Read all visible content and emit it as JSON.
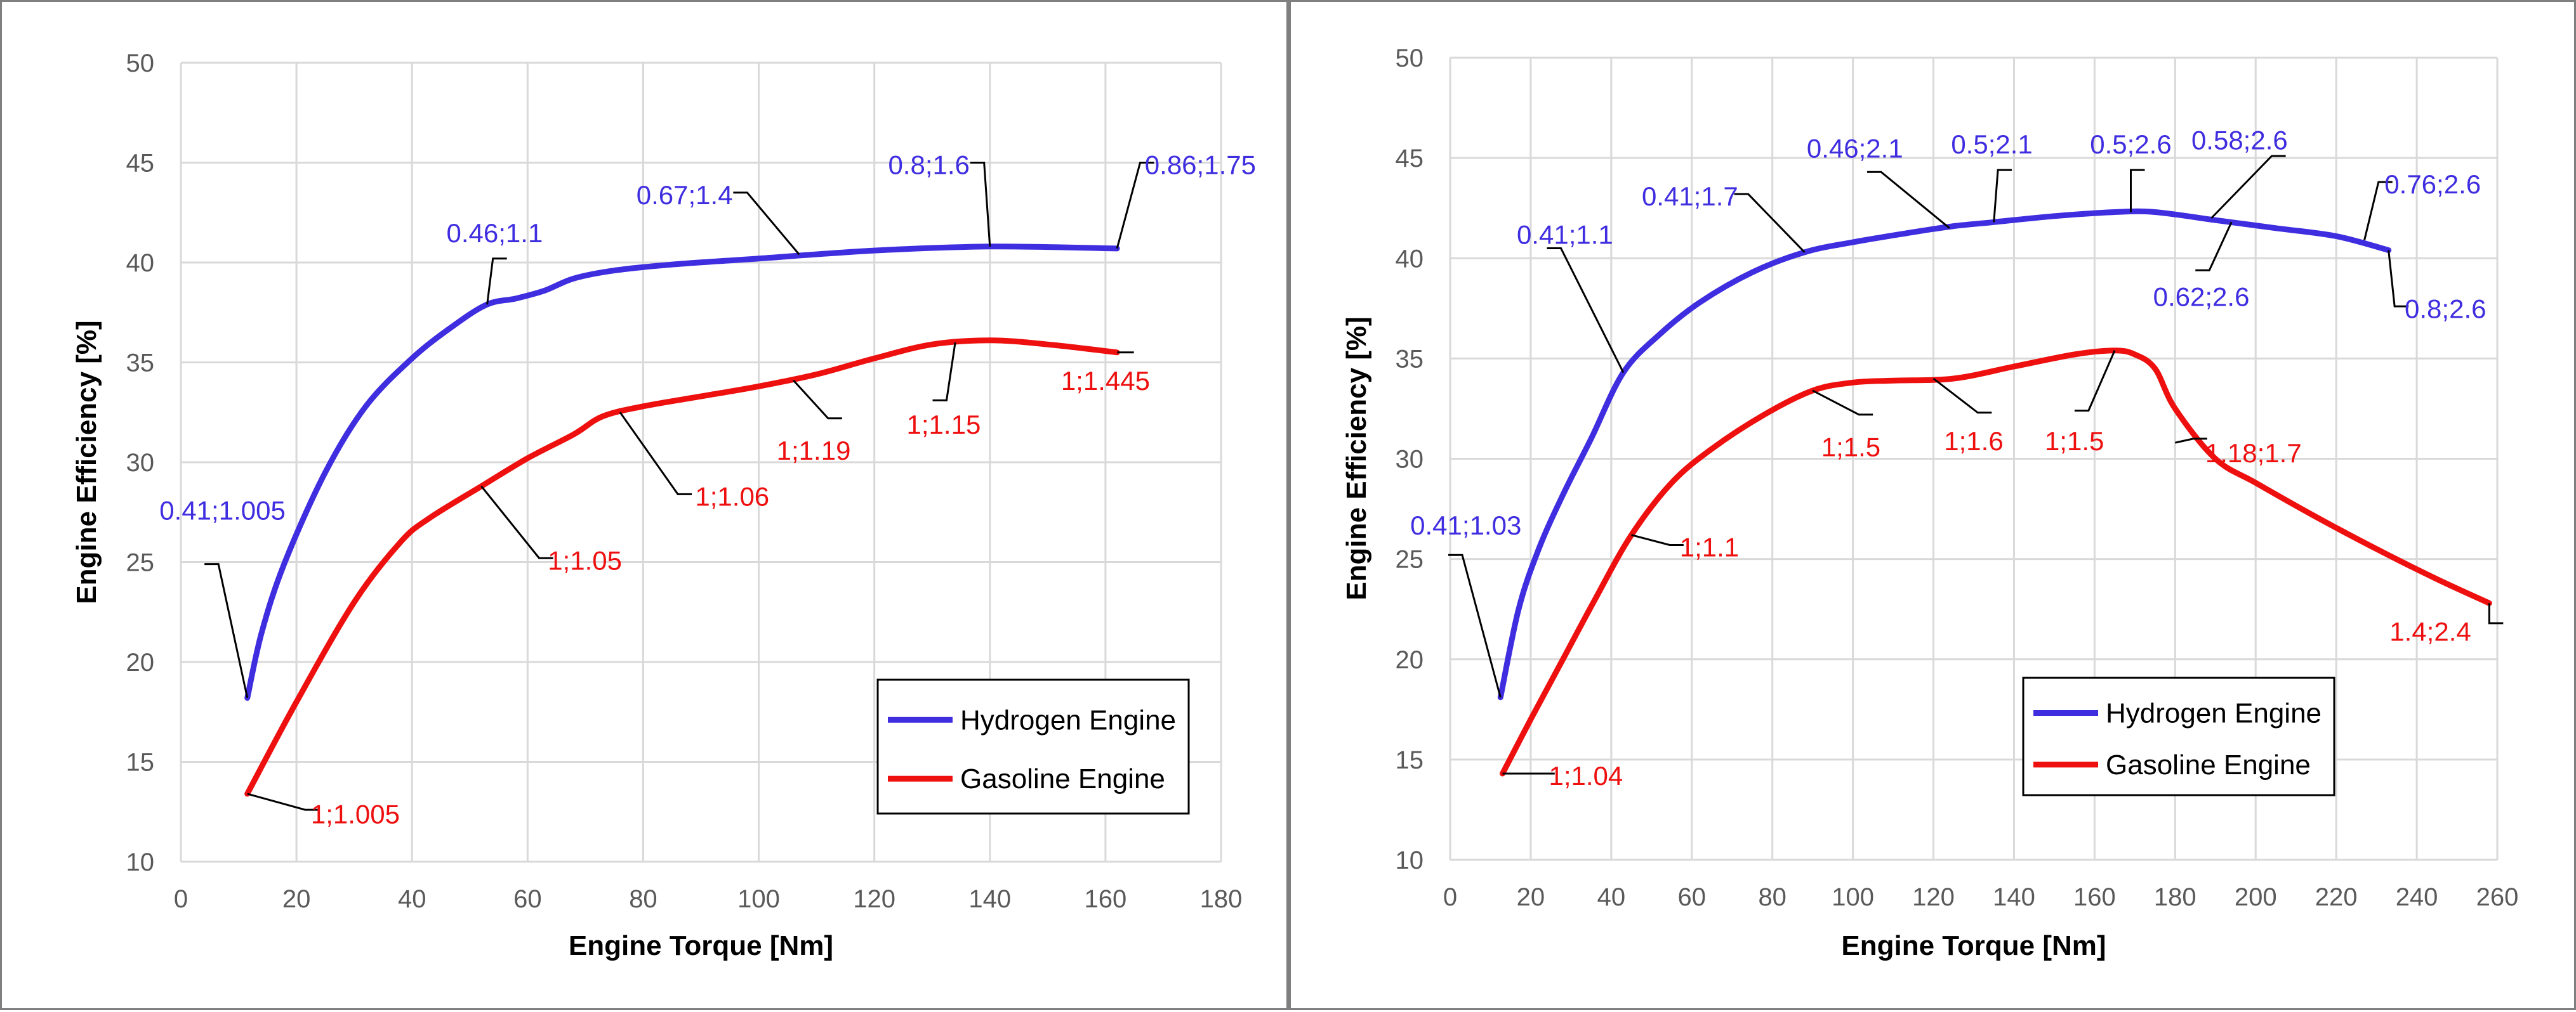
{
  "chart_data": [
    {
      "type": "line",
      "title": "",
      "xlabel": "Engine Torque [Nm]",
      "ylabel": "Engine Efficiency [%]",
      "xlim": [
        0,
        180
      ],
      "ylim": [
        10,
        50
      ],
      "xticks": [
        0,
        20,
        40,
        60,
        80,
        100,
        120,
        140,
        160,
        180
      ],
      "yticks": [
        10,
        15,
        20,
        25,
        30,
        35,
        40,
        45,
        50
      ],
      "grid": true,
      "legend_position": "bottom-right",
      "series": [
        {
          "name": "Hydrogen Engine",
          "color": "#3f2de0",
          "x": [
            11.5,
            14,
            18,
            25,
            32,
            40,
            47,
            53,
            58,
            63,
            68,
            75,
            85,
            100,
            120,
            140,
            162
          ],
          "y": [
            18.2,
            21.5,
            25,
            29.5,
            32.8,
            35.2,
            36.8,
            37.9,
            38.2,
            38.6,
            39.2,
            39.6,
            39.9,
            40.2,
            40.6,
            40.8,
            40.7
          ]
        },
        {
          "name": "Gasoline Engine",
          "color": "#ee0f0f",
          "x": [
            11.5,
            20,
            30,
            38,
            43,
            52,
            60,
            68,
            73,
            80,
            90,
            100,
            110,
            120,
            130,
            140,
            150,
            162
          ],
          "y": [
            13.4,
            18,
            23,
            26,
            27.2,
            28.8,
            30.2,
            31.4,
            32.3,
            32.8,
            33.3,
            33.8,
            34.4,
            35.2,
            35.9,
            36.1,
            35.9,
            35.5
          ]
        }
      ],
      "annotations": [
        {
          "series": 0,
          "text": "0.41;1.005",
          "x": 11.5,
          "y": 18.2,
          "lx": 6.5,
          "ly": 24.9,
          "tx": 7.2,
          "ty": 27.6,
          "anchor": "middle"
        },
        {
          "series": 0,
          "text": "0.46;1.1",
          "x": 53,
          "y": 37.9,
          "lx": 54,
          "ly": 40.2,
          "tx": 54.3,
          "ty": 41.5,
          "anchor": "middle"
        },
        {
          "series": 0,
          "text": "0.67;1.4",
          "x": 107,
          "y": 40.4,
          "lx": 98,
          "ly": 43.5,
          "tx": 95.5,
          "ty": 43.4,
          "anchor": "end"
        },
        {
          "series": 0,
          "text": "0.8;1.6",
          "x": 140,
          "y": 40.8,
          "lx": 139,
          "ly": 45,
          "tx": 136.5,
          "ty": 44.9,
          "anchor": "end"
        },
        {
          "series": 0,
          "text": "0.86;1.75",
          "x": 162,
          "y": 40.7,
          "lx": 166,
          "ly": 45,
          "tx": 166.8,
          "ty": 44.9,
          "anchor": "start"
        },
        {
          "series": 1,
          "text": "1;1.005",
          "x": 11.5,
          "y": 13.4,
          "lx": 21.5,
          "ly": 12.6,
          "tx": 22.5,
          "ty": 12.4,
          "anchor": "start"
        },
        {
          "series": 1,
          "text": "1;1.05",
          "x": 52,
          "y": 28.8,
          "lx": 62,
          "ly": 25.2,
          "tx": 63.5,
          "ty": 25.1,
          "anchor": "start"
        },
        {
          "series": 1,
          "text": "1;1.06",
          "x": 76,
          "y": 32.5,
          "lx": 86,
          "ly": 28.4,
          "tx": 89,
          "ty": 28.3,
          "anchor": "start"
        },
        {
          "series": 1,
          "text": "1;1.19",
          "x": 106,
          "y": 34.1,
          "lx": 112,
          "ly": 32.2,
          "tx": 109.5,
          "ty": 30.6,
          "anchor": "middle"
        },
        {
          "series": 1,
          "text": "1;1.15",
          "x": 134,
          "y": 36.0,
          "lx": 132.5,
          "ly": 33.1,
          "tx": 132,
          "ty": 31.9,
          "anchor": "middle"
        },
        {
          "series": 1,
          "text": "1;1.445",
          "x": 162,
          "y": 35.5,
          "lx": 162.5,
          "ly": 35.5,
          "tx": 160,
          "ty": 34.1,
          "anchor": "middle"
        }
      ]
    },
    {
      "type": "line",
      "title": "",
      "xlabel": "Engine Torque [Nm]",
      "ylabel": "Engine Efficiency [%]",
      "xlim": [
        0,
        260
      ],
      "ylim": [
        10,
        50
      ],
      "xticks": [
        0,
        20,
        40,
        60,
        80,
        100,
        120,
        140,
        160,
        180,
        200,
        220,
        240,
        260
      ],
      "yticks": [
        10,
        15,
        20,
        25,
        30,
        35,
        40,
        45,
        50
      ],
      "grid": true,
      "legend_position": "bottom-right",
      "series": [
        {
          "name": "Hydrogen Engine",
          "color": "#3f2de0",
          "x": [
            12.5,
            17,
            22,
            28,
            35,
            43,
            52,
            62,
            75,
            88,
            100,
            115,
            125,
            135,
            150,
            165,
            175,
            190,
            205,
            220,
            233
          ],
          "y": [
            18.1,
            22.5,
            25.5,
            28.2,
            31,
            34.3,
            36.2,
            37.8,
            39.3,
            40.3,
            40.8,
            41.3,
            41.6,
            41.8,
            42.1,
            42.3,
            42.3,
            41.9,
            41.5,
            41.1,
            40.4
          ]
        },
        {
          "name": "Gasoline Engine",
          "color": "#ee0f0f",
          "x": [
            13,
            20,
            28,
            36,
            45,
            55,
            65,
            78,
            90,
            100,
            110,
            125,
            140,
            155,
            165,
            170,
            175,
            180,
            190,
            200,
            215,
            230,
            245,
            258
          ],
          "y": [
            14.3,
            17,
            20,
            23,
            26.2,
            28.8,
            30.5,
            32.2,
            33.4,
            33.8,
            33.9,
            34.0,
            34.6,
            35.2,
            35.4,
            35.2,
            34.5,
            32.5,
            30.0,
            28.8,
            27.1,
            25.5,
            24.0,
            22.8
          ]
        }
      ],
      "annotations": [
        {
          "series": 0,
          "text": "0.41;1.03",
          "x": 12.5,
          "y": 18.1,
          "lx": 3,
          "ly": 25.2,
          "tx": 3.9,
          "ty": 26.7,
          "anchor": "middle"
        },
        {
          "series": 0,
          "text": "0.41;1.1",
          "x": 43,
          "y": 34.3,
          "lx": 27.5,
          "ly": 40.5,
          "tx": 28.5,
          "ty": 41.2,
          "anchor": "middle"
        },
        {
          "series": 0,
          "text": "0.41;1.7",
          "x": 88,
          "y": 40.3,
          "lx": 74,
          "ly": 43.2,
          "tx": 71.5,
          "ty": 43.1,
          "anchor": "end"
        },
        {
          "series": 0,
          "text": "0.46;2.1",
          "x": 124,
          "y": 41.5,
          "lx": 107,
          "ly": 44.3,
          "tx": 100.5,
          "ty": 45.5,
          "anchor": "middle"
        },
        {
          "series": 0,
          "text": "0.5;2.1",
          "x": 135,
          "y": 41.8,
          "lx": 136,
          "ly": 44.4,
          "tx": 134.5,
          "ty": 45.7,
          "anchor": "middle"
        },
        {
          "series": 0,
          "text": "0.5;2.6",
          "x": 169,
          "y": 42.3,
          "lx": 169,
          "ly": 44.4,
          "tx": 169,
          "ty": 45.7,
          "anchor": "middle"
        },
        {
          "series": 0,
          "text": "0.58;2.6",
          "x": 189,
          "y": 42.0,
          "lx": 204,
          "ly": 45.1,
          "tx": 196,
          "ty": 45.9,
          "anchor": "middle"
        },
        {
          "series": 0,
          "text": "0.62;2.6",
          "x": 194,
          "y": 41.8,
          "lx": 188.5,
          "ly": 39.4,
          "tx": 186.5,
          "ty": 38.1,
          "anchor": "middle"
        },
        {
          "series": 0,
          "text": "0.76;2.6",
          "x": 227,
          "y": 40.9,
          "lx": 230.5,
          "ly": 43.8,
          "tx": 232,
          "ty": 43.7,
          "anchor": "start"
        },
        {
          "series": 0,
          "text": "0.8;2.6",
          "x": 233,
          "y": 40.4,
          "lx": 234.5,
          "ly": 37.6,
          "tx": 237,
          "ty": 37.5,
          "anchor": "start"
        },
        {
          "series": 1,
          "text": "1;1.04",
          "x": 13,
          "y": 14.3,
          "lx": 22.5,
          "ly": 14.3,
          "tx": 24.5,
          "ty": 14.2,
          "anchor": "start"
        },
        {
          "series": 1,
          "text": "1;1.1",
          "x": 45,
          "y": 26.2,
          "lx": 54.5,
          "ly": 25.7,
          "tx": 57,
          "ty": 25.6,
          "anchor": "start"
        },
        {
          "series": 1,
          "text": "1;1.5",
          "x": 90,
          "y": 33.4,
          "lx": 101.5,
          "ly": 32.2,
          "tx": 99.5,
          "ty": 30.6,
          "anchor": "middle"
        },
        {
          "series": 1,
          "text": "1;1.6",
          "x": 120,
          "y": 34.0,
          "lx": 131,
          "ly": 32.3,
          "tx": 130,
          "ty": 30.9,
          "anchor": "middle"
        },
        {
          "series": 1,
          "text": "1;1.5",
          "x": 165,
          "y": 35.4,
          "lx": 158.5,
          "ly": 32.4,
          "tx": 155,
          "ty": 30.9,
          "anchor": "middle"
        },
        {
          "series": 1,
          "text": "1.18;1.7",
          "x": 180,
          "y": 30.8,
          "lx": 184.5,
          "ly": 31.0,
          "tx": 187.5,
          "ty": 30.3,
          "anchor": "start"
        },
        {
          "series": 1,
          "text": "1.4;2.4",
          "x": 258,
          "y": 22.8,
          "lx": 258,
          "ly": 21.8,
          "tx": 253.5,
          "ty": 21.4,
          "anchor": "end"
        }
      ]
    }
  ]
}
